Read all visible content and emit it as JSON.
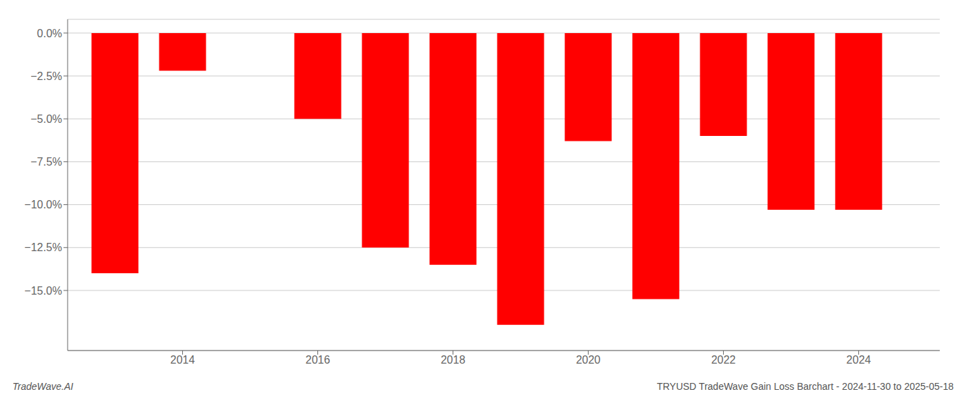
{
  "chart_data": {
    "type": "bar",
    "x": [
      2013,
      2014,
      2016,
      2017,
      2018,
      2019,
      2020,
      2021,
      2022,
      2023,
      2024
    ],
    "values": [
      -14.0,
      -2.2,
      -5.0,
      -12.5,
      -13.5,
      -17.0,
      -6.3,
      -15.5,
      -6.0,
      -10.3,
      -10.3
    ],
    "color": "#ff0000",
    "xlim": [
      2012.3,
      2025.2
    ],
    "xticks": [
      2014,
      2016,
      2018,
      2020,
      2022,
      2024
    ],
    "ylim": [
      -18.5,
      0.8
    ],
    "yticks": [
      {
        "value": 0.0,
        "label": "0.0%"
      },
      {
        "value": -2.5,
        "label": "−2.5%"
      },
      {
        "value": -5.0,
        "label": "−5.0%"
      },
      {
        "value": -7.5,
        "label": "−7.5%"
      },
      {
        "value": -10.0,
        "label": "−10.0%"
      },
      {
        "value": -12.5,
        "label": "−12.5%"
      },
      {
        "value": -15.0,
        "label": "−15.0%"
      }
    ],
    "grid": true,
    "annotations": [
      "TradeWave.AI",
      "TRYUSD TradeWave Gain Loss Barchart - 2024-11-30 to 2025-05-18"
    ]
  }
}
